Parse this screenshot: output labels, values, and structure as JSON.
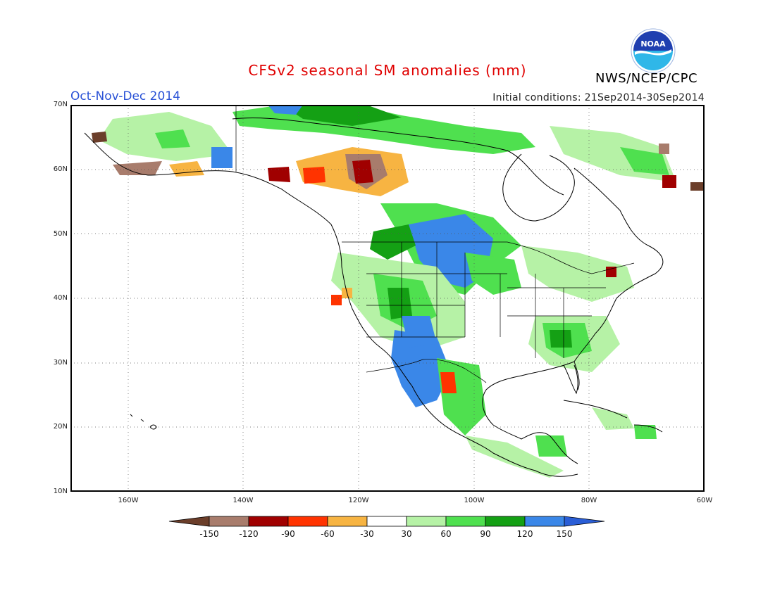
{
  "header": {
    "title": "CFSv2 seasonal SM anomalies (mm)",
    "period": "Oct-Nov-Dec 2014",
    "initial_conditions": "Initial conditions: 21Sep2014-30Sep2014",
    "agency": "NWS/NCEP/CPC",
    "logo_text": "NOAA"
  },
  "axes": {
    "lat_labels": [
      "70N",
      "60N",
      "50N",
      "40N",
      "30N",
      "20N",
      "10N"
    ],
    "lon_labels": [
      "160W",
      "140W",
      "120W",
      "100W",
      "80W",
      "60W"
    ],
    "lat_range": [
      10,
      70
    ],
    "lon_range": [
      -170,
      -60
    ]
  },
  "legend": {
    "labels": [
      "-150",
      "-120",
      "-90",
      "-60",
      "-30",
      "30",
      "60",
      "90",
      "120",
      "150"
    ],
    "colors": [
      "#6b3e2a",
      "#a87c6c",
      "#a00000",
      "#ff3300",
      "#f7b442",
      "#ffffff",
      "#b6f2a6",
      "#4fe04f",
      "#14a014",
      "#3a87e8",
      "#2a5ed6"
    ]
  },
  "map": {
    "regions": [
      {
        "name": "Northern Plains (Montana/Dakotas/Saskatchewan)",
        "level": "+150 (blue)"
      },
      {
        "name": "Southwest US / northwest Mexico",
        "level": "+150 (blue)"
      },
      {
        "name": "Central US and Rockies",
        "level": "+60 to +120 (green)"
      },
      {
        "name": "Southeast US",
        "level": "+60 to +120 (green)"
      },
      {
        "name": "Northern Canada / Arctic coast",
        "level": "+60 to +120 (green)"
      },
      {
        "name": "Western Canada (British Columbia/Alberta)",
        "level": "-60 to -150 (orange/red/brown)"
      },
      {
        "name": "Alaska",
        "level": "mixed -120 to +150"
      }
    ]
  }
}
